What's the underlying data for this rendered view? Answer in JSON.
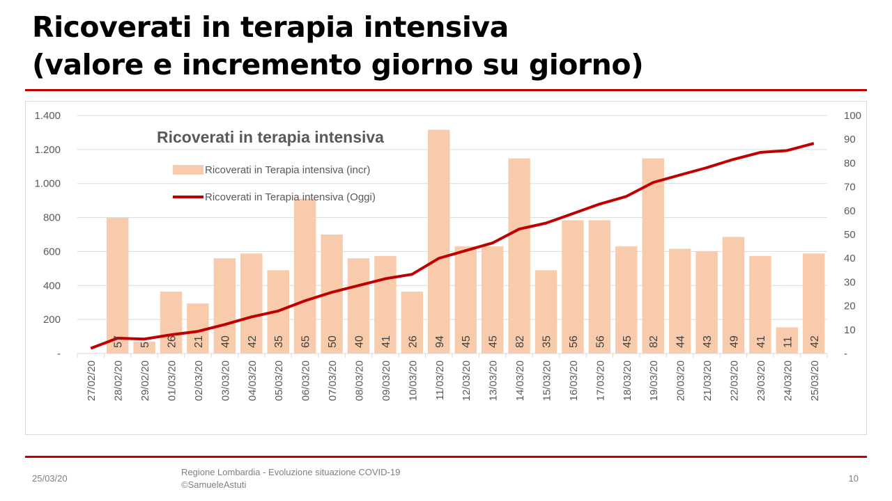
{
  "slide": {
    "title_line1": "Ricoverati in terapia intensiva",
    "title_line2": "(valore e incremento giorno su giorno)"
  },
  "footer": {
    "date": "25/03/20",
    "source_line1": "Regione Lombardia - Evoluzione situazione COVID-19",
    "source_line2": "©SamueleAstuti",
    "page_number": "10"
  },
  "colors": {
    "bar": "#f8cbad",
    "line": "#c00000",
    "rule": "#c00000",
    "chart_title": "#595959",
    "axis_text": "#595959",
    "gridline": "#d9d9d9"
  },
  "chart_data": {
    "type": "bar",
    "title": "Ricoverati in terapia intensiva",
    "legend_position": "top-left",
    "grid": true,
    "categories": [
      "27/02/20",
      "28/02/20",
      "29/02/20",
      "01/03/20",
      "02/03/20",
      "03/03/20",
      "04/03/20",
      "05/03/20",
      "06/03/20",
      "07/03/20",
      "08/03/20",
      "09/03/20",
      "10/03/20",
      "11/03/20",
      "12/03/20",
      "13/03/20",
      "14/03/20",
      "15/03/20",
      "16/03/20",
      "17/03/20",
      "18/03/20",
      "19/03/20",
      "20/03/20",
      "21/03/20",
      "22/03/20",
      "23/03/20",
      "24/03/20",
      "25/03/20"
    ],
    "y_left_ticks": [
      "-",
      "200",
      "400",
      "600",
      "800",
      "1.000",
      "1.200",
      "1.400"
    ],
    "y_right_ticks": [
      "-",
      "10",
      "20",
      "30",
      "40",
      "50",
      "60",
      "70",
      "80",
      "90",
      "100"
    ],
    "y_left_range": [
      0,
      1400
    ],
    "y_right_range": [
      0,
      100
    ],
    "series": [
      {
        "name": "Ricoverati in Terapia intensiva (incr)",
        "type": "bar",
        "axis": "right",
        "values": [
          0,
          57,
          5,
          26,
          21,
          40,
          42,
          35,
          65,
          50,
          40,
          41,
          26,
          94,
          45,
          45,
          82,
          35,
          56,
          56,
          45,
          82,
          44,
          43,
          49,
          41,
          11,
          42
        ],
        "labels": [
          "",
          "57",
          "5",
          "26",
          "21",
          "40",
          "42",
          "35",
          "65",
          "50",
          "40",
          "41",
          "26",
          "94",
          "45",
          "45",
          "82",
          "35",
          "56",
          "56",
          "45",
          "82",
          "44",
          "43",
          "49",
          "41",
          "11",
          "42"
        ]
      },
      {
        "name": "Ricoverati in Terapia intensiva (Oggi)",
        "type": "line",
        "axis": "left",
        "values": [
          30,
          90,
          85,
          110,
          130,
          170,
          215,
          250,
          310,
          360,
          400,
          440,
          466,
          560,
          605,
          650,
          732,
          767,
          823,
          879,
          924,
          1006,
          1050,
          1093,
          1142,
          1183,
          1194,
          1236
        ]
      }
    ]
  }
}
